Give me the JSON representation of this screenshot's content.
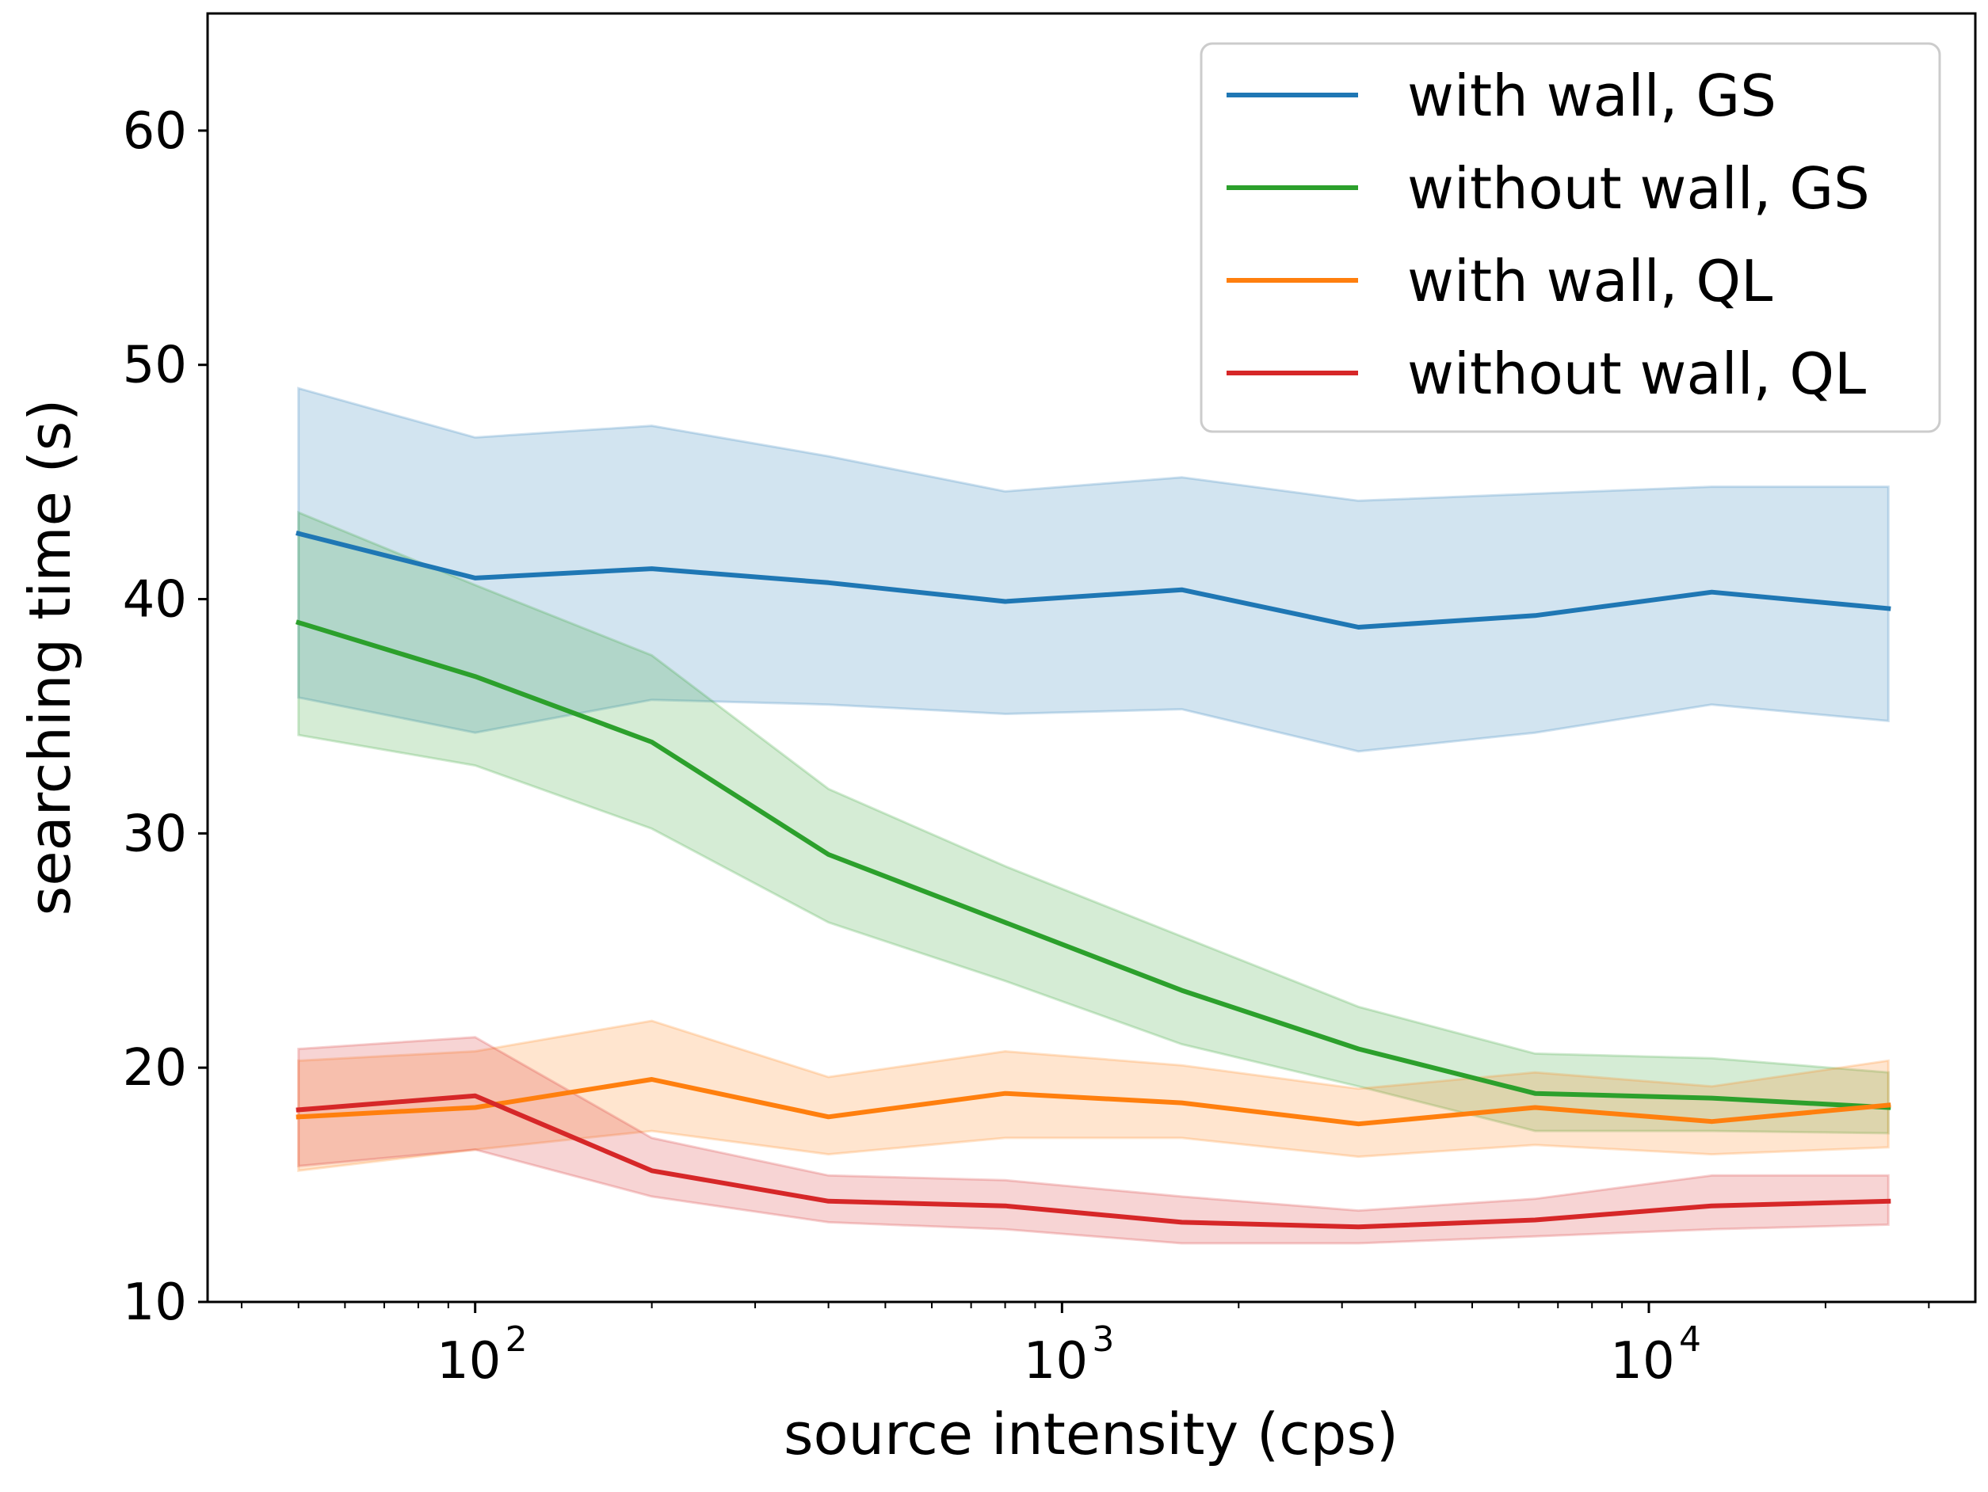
{
  "chart_data": {
    "type": "line",
    "title": "",
    "xlabel": "source intensity (cps)",
    "ylabel": "searching time (s)",
    "xscale": "log",
    "xlim": [
      35,
      36000
    ],
    "ylim": [
      10,
      65
    ],
    "grid": false,
    "legend_position": "top-right",
    "x": [
      50,
      100,
      200,
      400,
      800,
      1600,
      3200,
      6400,
      12800,
      25600
    ],
    "y_ticks": [
      10,
      20,
      30,
      40,
      50,
      60
    ],
    "y_tick_labels": [
      "10",
      "20",
      "30",
      "40",
      "50",
      "60"
    ],
    "x_ticks": [
      {
        "value": 100,
        "base": "10",
        "exp": "2"
      },
      {
        "value": 1000,
        "base": "10",
        "exp": "3"
      },
      {
        "value": 10000,
        "base": "10",
        "exp": "4"
      }
    ],
    "series": [
      {
        "name": "with wall, GS",
        "color": "#1f77b4",
        "values": [
          42.8,
          40.9,
          41.3,
          40.7,
          39.9,
          40.4,
          38.8,
          39.3,
          40.3,
          39.6
        ],
        "lower": [
          35.8,
          34.3,
          35.7,
          35.5,
          35.1,
          35.3,
          33.5,
          34.3,
          35.5,
          34.8
        ],
        "upper": [
          49.0,
          46.9,
          47.4,
          46.1,
          44.6,
          45.2,
          44.2,
          44.5,
          44.8,
          44.8
        ]
      },
      {
        "name": "without wall, GS",
        "color": "#2ca02c",
        "values": [
          39.0,
          36.7,
          33.9,
          29.1,
          26.2,
          23.3,
          20.8,
          18.9,
          18.7,
          18.3
        ],
        "lower": [
          34.2,
          32.9,
          30.2,
          26.2,
          23.7,
          21.0,
          19.2,
          17.3,
          17.3,
          17.2
        ],
        "upper": [
          43.7,
          40.6,
          37.6,
          31.9,
          28.6,
          25.6,
          22.6,
          20.6,
          20.4,
          19.8
        ]
      },
      {
        "name": "with wall, QL",
        "color": "#ff7f0e",
        "values": [
          17.9,
          18.3,
          19.5,
          17.9,
          18.9,
          18.5,
          17.6,
          18.3,
          17.7,
          18.4
        ],
        "lower": [
          15.6,
          16.5,
          17.3,
          16.3,
          17.0,
          17.0,
          16.2,
          16.7,
          16.3,
          16.6
        ],
        "upper": [
          20.3,
          20.7,
          22.0,
          19.6,
          20.7,
          20.1,
          19.1,
          19.8,
          19.2,
          20.3
        ]
      },
      {
        "name": "without wall, QL",
        "color": "#d62728",
        "values": [
          18.2,
          18.8,
          15.6,
          14.3,
          14.1,
          13.4,
          13.2,
          13.5,
          14.1,
          14.3
        ],
        "lower": [
          15.8,
          16.5,
          14.5,
          13.4,
          13.1,
          12.5,
          12.5,
          12.8,
          13.1,
          13.3
        ],
        "upper": [
          20.8,
          21.3,
          17.0,
          15.4,
          15.2,
          14.5,
          13.9,
          14.4,
          15.4,
          15.4
        ]
      }
    ]
  }
}
